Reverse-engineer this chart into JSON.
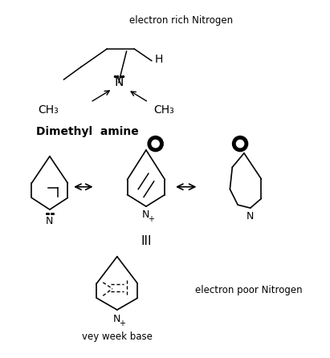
{
  "background_color": "#ffffff",
  "top_label": "electron rich Nitrogen",
  "dimethyl_label": "Dimethyl  amine",
  "ch3_left": "CH₃",
  "ch3_right": "CH₃",
  "H_label": "H",
  "III_label": "III",
  "electron_poor_label": "electron poor Nitrogen",
  "weak_base_label": "vey week base",
  "fig_width": 4.11,
  "fig_height": 4.46,
  "dpi": 100
}
